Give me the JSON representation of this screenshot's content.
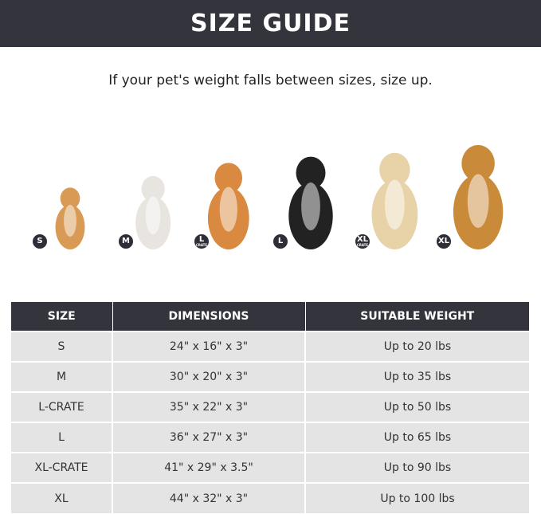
{
  "title": "SIZE GUIDE",
  "subtitle": "If your pet's weight falls between sizes, size up.",
  "dogs": [
    {
      "badge": "S",
      "badge_sub": "",
      "color": "#d99a55"
    },
    {
      "badge": "M",
      "badge_sub": "",
      "color": "#e8e4e0"
    },
    {
      "badge": "L",
      "badge_sub": "CRATE",
      "color": "#d98a40"
    },
    {
      "badge": "L",
      "badge_sub": "",
      "color": "#222222"
    },
    {
      "badge": "XL",
      "badge_sub": "CRATE",
      "color": "#e8d3a8"
    },
    {
      "badge": "XL",
      "badge_sub": "",
      "color": "#c98a3a"
    }
  ],
  "table": {
    "headers": [
      "SIZE",
      "DIMENSIONS",
      "SUITABLE WEIGHT"
    ],
    "rows": [
      [
        "S",
        "24\" x 16\" x 3\"",
        "Up to 20 lbs"
      ],
      [
        "M",
        "30\" x 20\" x 3\"",
        "Up to 35 lbs"
      ],
      [
        "L-CRATE",
        "35\" x 22\" x 3\"",
        "Up to 50 lbs"
      ],
      [
        "L",
        "36\" x 27\" x 3\"",
        "Up to 65 lbs"
      ],
      [
        "XL-CRATE",
        "41\" x 29\" x 3.5\"",
        "Up to 90 lbs"
      ],
      [
        "XL",
        "44\" x 32\" x 3\"",
        "Up to 100 lbs"
      ]
    ]
  }
}
